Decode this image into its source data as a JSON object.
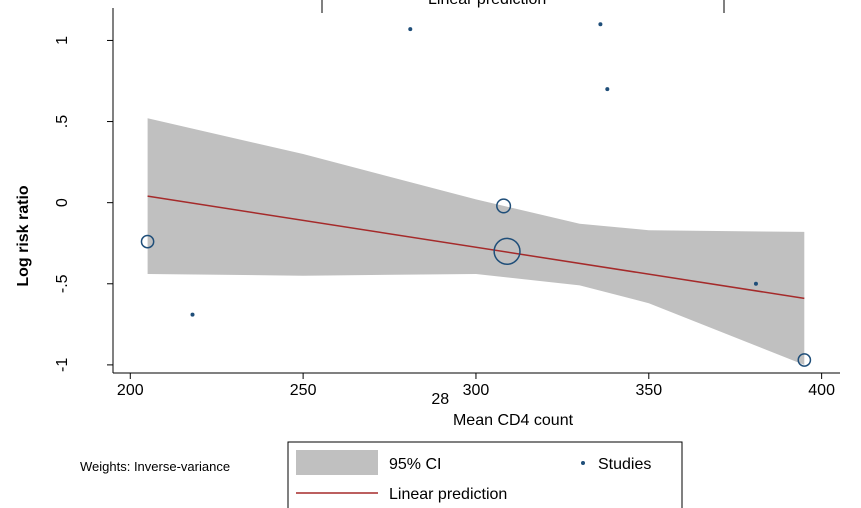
{
  "chart_data": {
    "type": "scatter",
    "xlabel": "Mean CD4 count",
    "ylabel": "Log risk ratio",
    "xlim": [
      195,
      403
    ],
    "ylim": [
      -1.05,
      1.2
    ],
    "x_ticks": [
      200,
      250,
      300,
      350,
      400
    ],
    "x_tick_labels": [
      "200",
      "250",
      "300",
      "350",
      "400"
    ],
    "y_ticks": [
      1,
      0.5,
      0,
      -0.5,
      -1
    ],
    "y_tick_labels": [
      "1",
      ".5",
      "0",
      "-.5",
      "-1"
    ],
    "grid": false,
    "legend_position": "bottom",
    "stray_label": {
      "text": "28",
      "x": 290
    },
    "weights_note": "Weights: Inverse-variance",
    "top_legend_fragment": "Linear prediction",
    "series": [
      {
        "name": "Studies",
        "type": "scatter",
        "color": "#1f4e79",
        "points": [
          {
            "x": 205,
            "y": -0.24,
            "weight": 2.2
          },
          {
            "x": 218,
            "y": -0.69,
            "weight": 0.3
          },
          {
            "x": 281,
            "y": 1.07,
            "weight": 0.3
          },
          {
            "x": 308,
            "y": -0.02,
            "weight": 2.8
          },
          {
            "x": 309,
            "y": -0.3,
            "weight": 10
          },
          {
            "x": 336,
            "y": 1.1,
            "weight": 0.3
          },
          {
            "x": 338,
            "y": 0.7,
            "weight": 0.3
          },
          {
            "x": 381,
            "y": -0.5,
            "weight": 0.3
          },
          {
            "x": 395,
            "y": -0.97,
            "weight": 2.2
          }
        ]
      },
      {
        "name": "Linear prediction",
        "type": "line",
        "color": "#a52a2a",
        "points": [
          {
            "x": 205,
            "y": 0.04
          },
          {
            "x": 395,
            "y": -0.59
          }
        ]
      },
      {
        "name": "95% CI",
        "type": "band",
        "color": "#c0c0c0",
        "x": [
          205,
          250,
          300,
          330,
          350,
          395
        ],
        "upper": [
          0.52,
          0.3,
          0.02,
          -0.13,
          -0.17,
          -0.18
        ],
        "lower": [
          -0.44,
          -0.45,
          -0.44,
          -0.51,
          -0.62,
          -1.0
        ]
      }
    ],
    "legend": [
      {
        "label": "95% CI",
        "symbol": "band"
      },
      {
        "label": "Studies",
        "symbol": "dot"
      },
      {
        "label": "Linear prediction",
        "symbol": "line"
      }
    ]
  }
}
